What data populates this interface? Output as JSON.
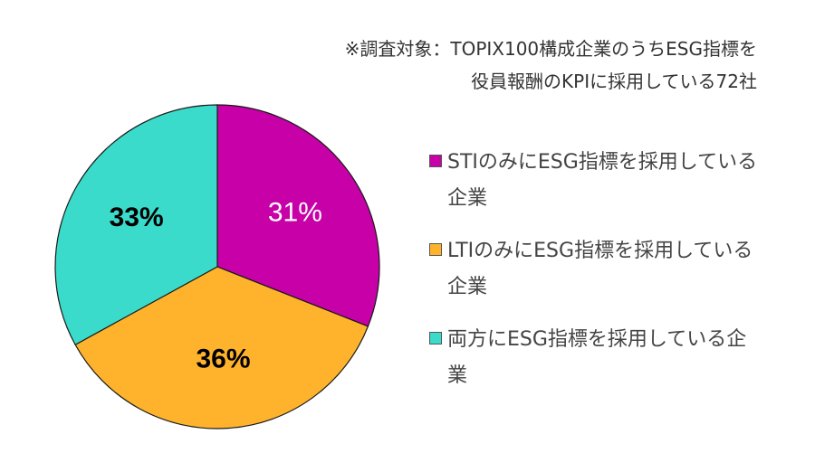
{
  "note": {
    "line1": "※調査対象：TOPIX100構成企業のうちESG指標を",
    "line2": "役員報酬のKPIに採用している72社"
  },
  "chart_data": {
    "type": "pie",
    "slices": [
      {
        "label": "STIのみにESG指標を採用している企業",
        "value": 31,
        "display": "31%",
        "color": "#C800A8",
        "text_color": "#ffffff",
        "bold": false
      },
      {
        "label": "LTIのみにESG指標を採用している企業",
        "value": 36,
        "display": "36%",
        "color": "#FFB32C",
        "text_color": "#000000",
        "bold": true
      },
      {
        "label": "両方にESG指標を採用している企業",
        "value": 33,
        "display": "33%",
        "color": "#3ADBCA",
        "text_color": "#000000",
        "bold": true
      }
    ],
    "start_angle": "12 o'clock, clockwise",
    "legend_position": "right"
  }
}
